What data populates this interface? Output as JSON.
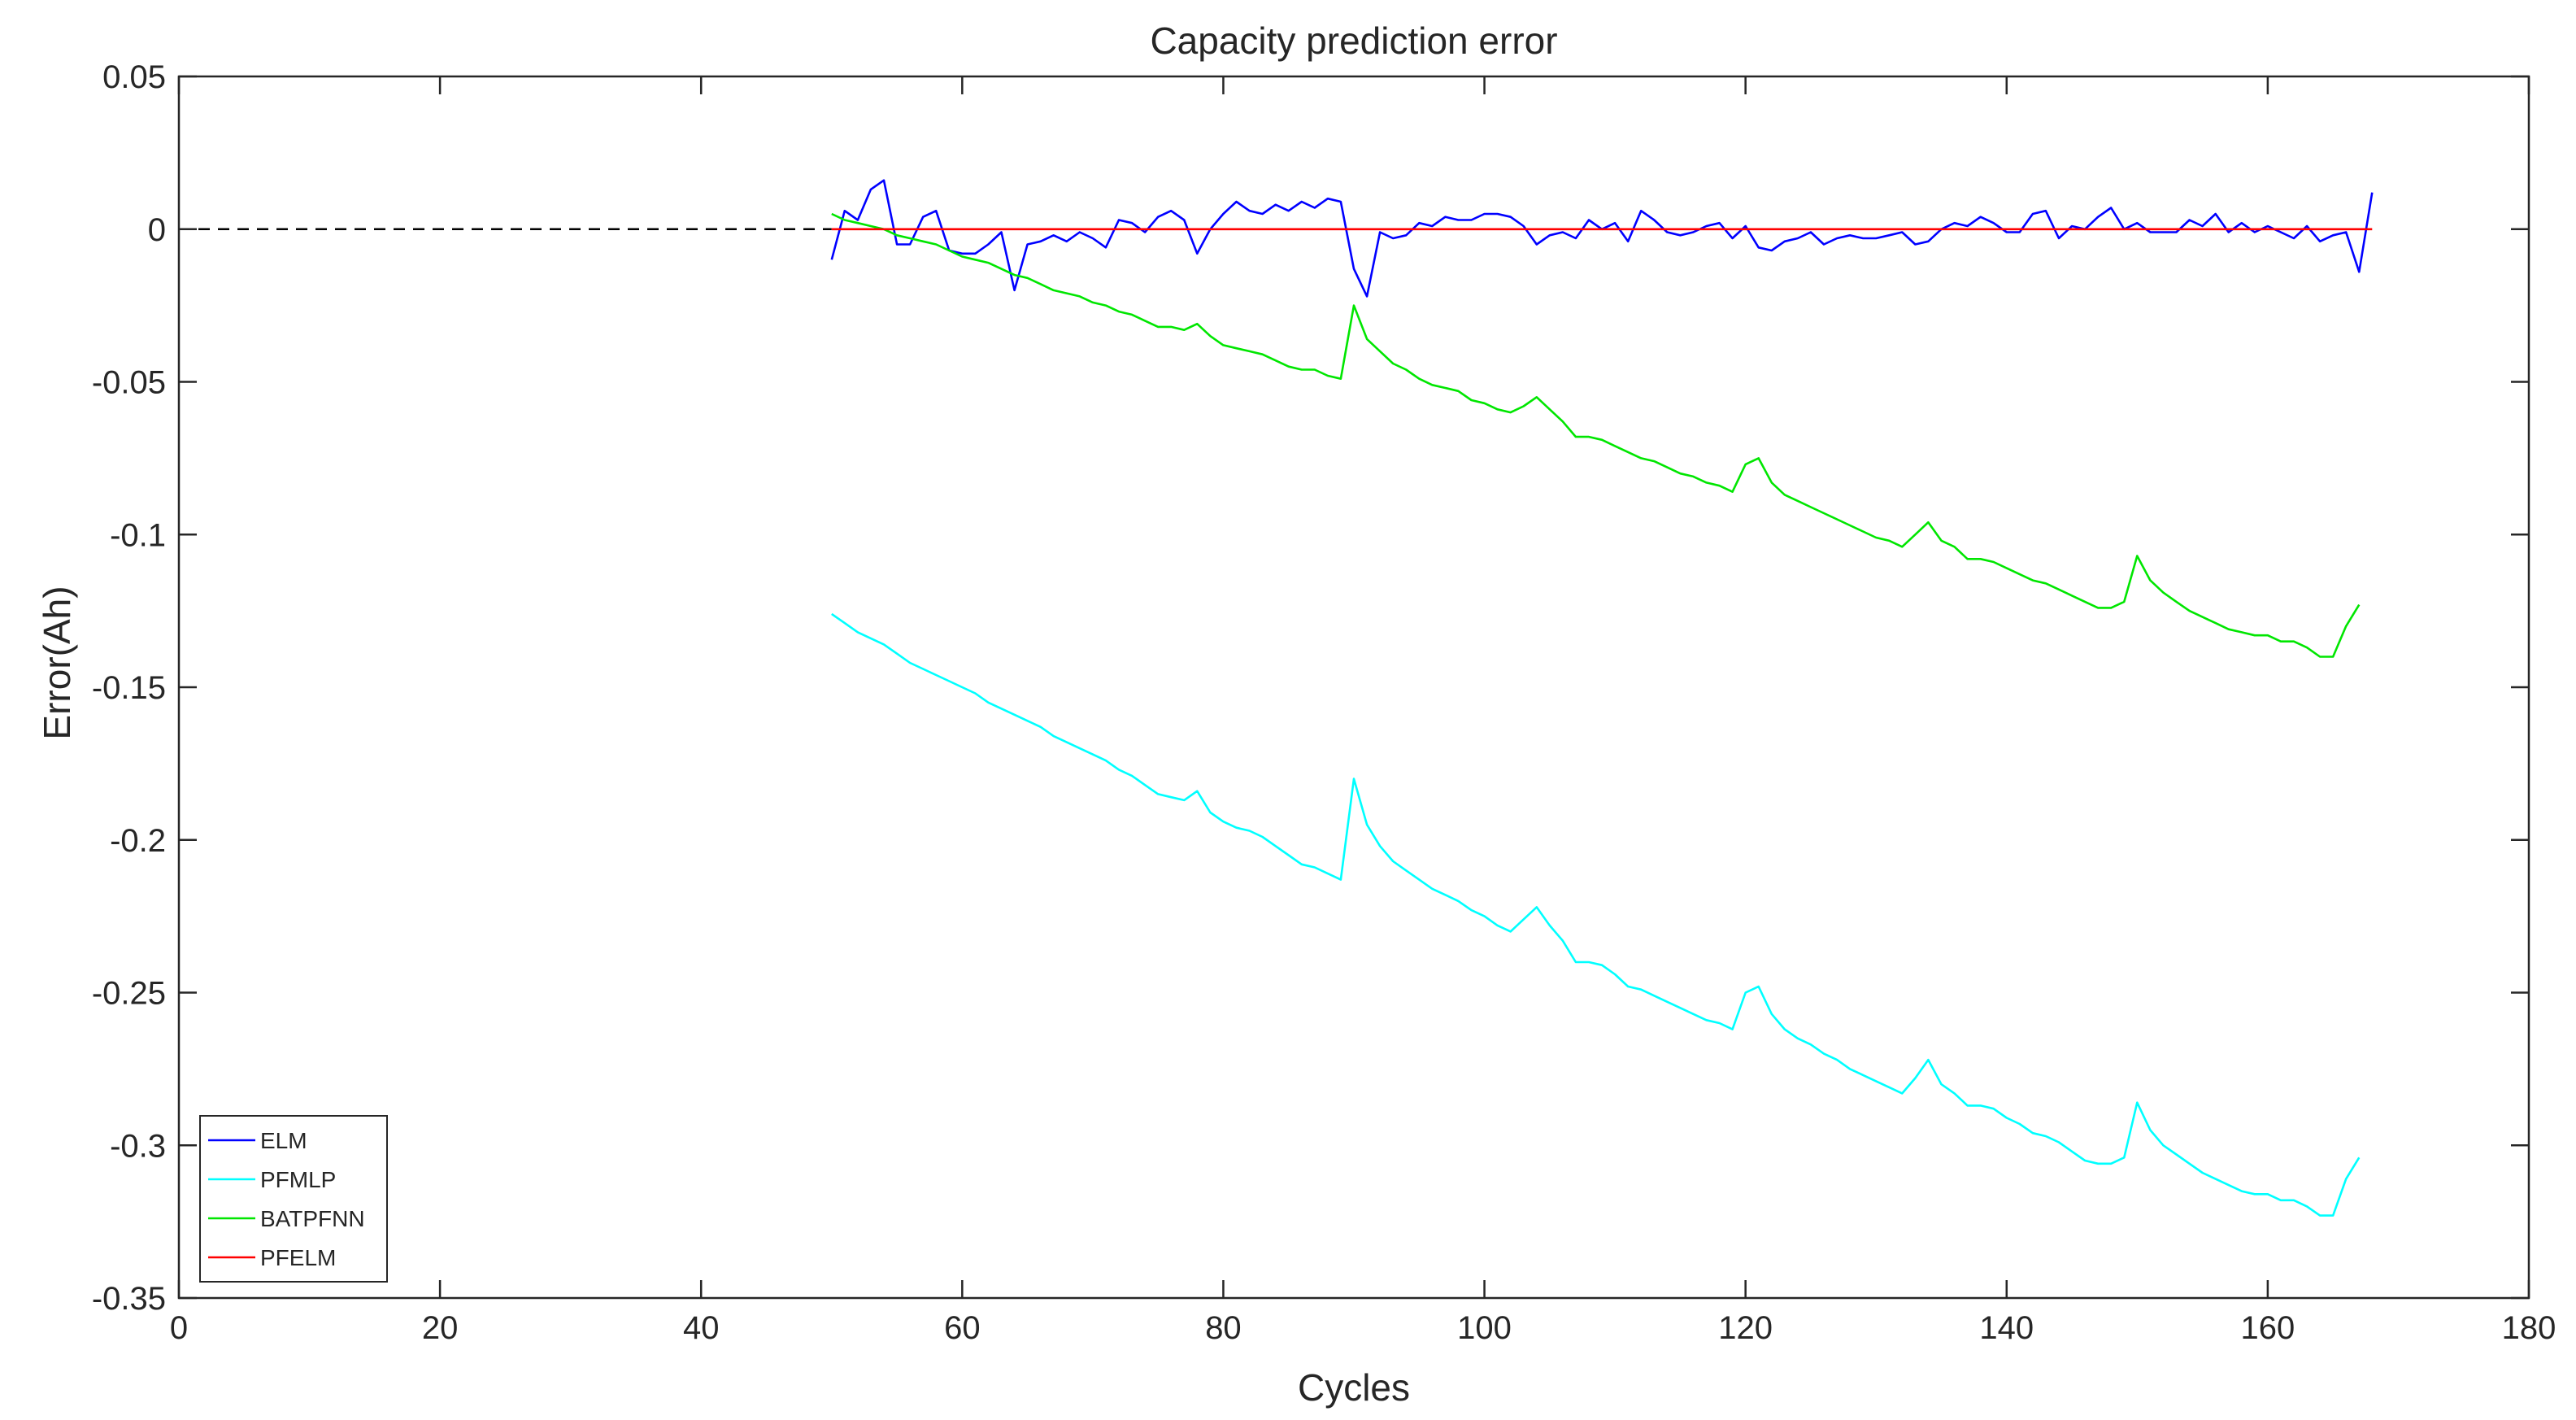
{
  "chart_data": {
    "type": "line",
    "title": "Capacity prediction error",
    "xlabel": "Cycles",
    "ylabel": "Error(Ah)",
    "xlim": [
      0,
      180
    ],
    "ylim": [
      -0.35,
      0.05
    ],
    "xticks": [
      0,
      20,
      40,
      60,
      80,
      100,
      120,
      140,
      160,
      180
    ],
    "xtick_labels": [
      "0",
      "20",
      "40",
      "60",
      "80",
      "100",
      "120",
      "140",
      "160",
      "180"
    ],
    "yticks": [
      0.05,
      0,
      -0.05,
      -0.1,
      -0.15,
      -0.2,
      -0.25,
      -0.3,
      -0.35
    ],
    "ytick_labels": [
      "0.05",
      "0",
      "-0.05",
      "-0.1",
      "-0.15",
      "-0.2",
      "-0.25",
      "-0.3",
      "-0.35"
    ],
    "grid": false,
    "legend_position": "bottom-left",
    "reference_line": {
      "y": 0,
      "x_range": [
        0,
        50
      ],
      "style": "dashed",
      "color": "#000000"
    },
    "x_start": 50,
    "series": [
      {
        "name": "ELM",
        "color": "#0000ff",
        "values": [
          -0.01,
          0.006,
          0.003,
          0.013,
          0.016,
          -0.005,
          -0.005,
          0.004,
          0.006,
          -0.007,
          -0.008,
          -0.008,
          -0.005,
          -0.001,
          -0.02,
          -0.005,
          -0.004,
          -0.002,
          -0.004,
          -0.001,
          -0.003,
          -0.006,
          0.003,
          0.002,
          -0.001,
          0.004,
          0.006,
          0.003,
          -0.008,
          0.0,
          0.005,
          0.009,
          0.006,
          0.005,
          0.008,
          0.006,
          0.009,
          0.007,
          0.01,
          0.009,
          -0.013,
          -0.022,
          -0.001,
          -0.003,
          -0.002,
          0.002,
          0.001,
          0.004,
          0.003,
          0.003,
          0.005,
          0.005,
          0.004,
          0.001,
          -0.005,
          -0.002,
          -0.001,
          -0.003,
          0.003,
          0.0,
          0.002,
          -0.004,
          0.006,
          0.003,
          -0.001,
          -0.002,
          -0.001,
          0.001,
          0.002,
          -0.003,
          0.001,
          -0.006,
          -0.007,
          -0.004,
          -0.003,
          -0.001,
          -0.005,
          -0.003,
          -0.002,
          -0.003,
          -0.003,
          -0.002,
          -0.001,
          -0.005,
          -0.004,
          0.0,
          0.002,
          0.001,
          0.004,
          0.002,
          -0.001,
          -0.001,
          0.005,
          0.006,
          -0.003,
          0.001,
          0.0,
          0.004,
          0.007,
          0.0,
          0.002,
          -0.001,
          -0.001,
          -0.001,
          0.003,
          0.001,
          0.005,
          -0.001,
          0.002,
          -0.001,
          0.001,
          -0.001,
          -0.003,
          0.001,
          -0.004,
          -0.002,
          -0.001,
          -0.014,
          0.012
        ]
      },
      {
        "name": "PFMLP",
        "color": "#00ffff",
        "values": [
          -0.126,
          -0.129,
          -0.132,
          -0.134,
          -0.136,
          -0.139,
          -0.142,
          -0.144,
          -0.146,
          -0.148,
          -0.15,
          -0.152,
          -0.155,
          -0.157,
          -0.159,
          -0.161,
          -0.163,
          -0.166,
          -0.168,
          -0.17,
          -0.172,
          -0.174,
          -0.177,
          -0.179,
          -0.182,
          -0.185,
          -0.186,
          -0.187,
          -0.184,
          -0.191,
          -0.194,
          -0.196,
          -0.197,
          -0.199,
          -0.202,
          -0.205,
          -0.208,
          -0.209,
          -0.211,
          -0.213,
          -0.18,
          -0.195,
          -0.202,
          -0.207,
          -0.21,
          -0.213,
          -0.216,
          -0.218,
          -0.22,
          -0.223,
          -0.225,
          -0.228,
          -0.23,
          -0.226,
          -0.222,
          -0.228,
          -0.233,
          -0.24,
          -0.24,
          -0.241,
          -0.244,
          -0.248,
          -0.249,
          -0.251,
          -0.253,
          -0.255,
          -0.257,
          -0.259,
          -0.26,
          -0.262,
          -0.25,
          -0.248,
          -0.257,
          -0.262,
          -0.265,
          -0.267,
          -0.27,
          -0.272,
          -0.275,
          -0.277,
          -0.279,
          -0.281,
          -0.283,
          -0.278,
          -0.272,
          -0.28,
          -0.283,
          -0.287,
          -0.287,
          -0.288,
          -0.291,
          -0.293,
          -0.296,
          -0.297,
          -0.299,
          -0.302,
          -0.305,
          -0.306,
          -0.306,
          -0.304,
          -0.286,
          -0.295,
          -0.3,
          -0.303,
          -0.306,
          -0.309,
          -0.311,
          -0.313,
          -0.315,
          -0.316,
          -0.316,
          -0.318,
          -0.318,
          -0.32,
          -0.323,
          -0.323,
          -0.311,
          -0.304
        ]
      },
      {
        "name": "BATPFNN",
        "color": "#00e600",
        "values": [
          0.005,
          0.003,
          0.002,
          0.001,
          0.0,
          -0.002,
          -0.003,
          -0.004,
          -0.005,
          -0.007,
          -0.009,
          -0.01,
          -0.011,
          -0.013,
          -0.015,
          -0.016,
          -0.018,
          -0.02,
          -0.021,
          -0.022,
          -0.024,
          -0.025,
          -0.027,
          -0.028,
          -0.03,
          -0.032,
          -0.032,
          -0.033,
          -0.031,
          -0.035,
          -0.038,
          -0.039,
          -0.04,
          -0.041,
          -0.043,
          -0.045,
          -0.046,
          -0.046,
          -0.048,
          -0.049,
          -0.025,
          -0.036,
          -0.04,
          -0.044,
          -0.046,
          -0.049,
          -0.051,
          -0.052,
          -0.053,
          -0.056,
          -0.057,
          -0.059,
          -0.06,
          -0.058,
          -0.055,
          -0.059,
          -0.063,
          -0.068,
          -0.068,
          -0.069,
          -0.071,
          -0.073,
          -0.075,
          -0.076,
          -0.078,
          -0.08,
          -0.081,
          -0.083,
          -0.084,
          -0.086,
          -0.077,
          -0.075,
          -0.083,
          -0.087,
          -0.089,
          -0.091,
          -0.093,
          -0.095,
          -0.097,
          -0.099,
          -0.101,
          -0.102,
          -0.104,
          -0.1,
          -0.096,
          -0.102,
          -0.104,
          -0.108,
          -0.108,
          -0.109,
          -0.111,
          -0.113,
          -0.115,
          -0.116,
          -0.118,
          -0.12,
          -0.122,
          -0.124,
          -0.124,
          -0.122,
          -0.107,
          -0.115,
          -0.119,
          -0.122,
          -0.125,
          -0.127,
          -0.129,
          -0.131,
          -0.132,
          -0.133,
          -0.133,
          -0.135,
          -0.135,
          -0.137,
          -0.14,
          -0.14,
          -0.13,
          -0.123
        ]
      },
      {
        "name": "PFELM",
        "color": "#ff0000",
        "x": [
          50,
          168
        ],
        "values": [
          0,
          0
        ]
      }
    ]
  }
}
